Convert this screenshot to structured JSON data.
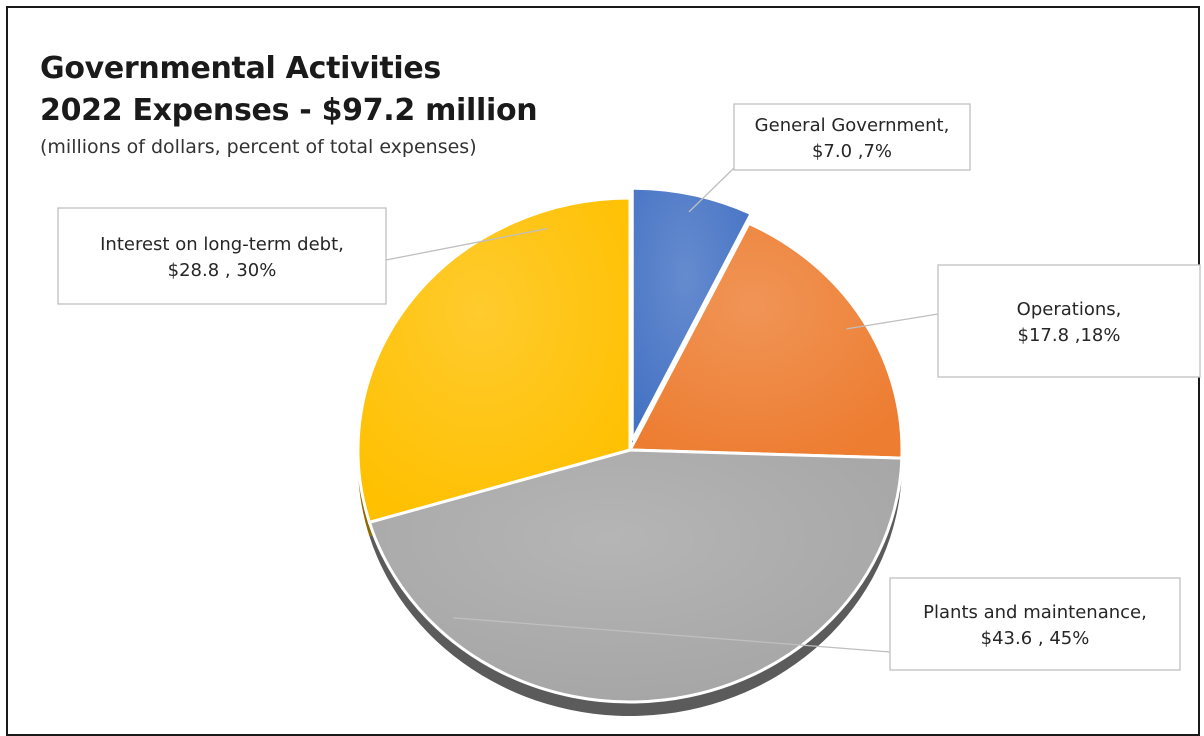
{
  "chart_data": {
    "type": "pie",
    "title": "Governmental Activities",
    "subtitle_line": "2022 Expenses - $97.2 million",
    "note": "(millions of dollars, percent of total expenses)",
    "slices": [
      {
        "label": "General Government",
        "value": 7.0,
        "percent": 7,
        "value_text": "$7.0 ,7%",
        "color": "#4472C4",
        "exploded": true
      },
      {
        "label": "Operations",
        "value": 17.8,
        "percent": 18,
        "value_text": "$17.8 ,18%",
        "color": "#ED7D31",
        "exploded": false
      },
      {
        "label": "Plants and maintenance",
        "value": 43.6,
        "percent": 45,
        "value_text": "$43.6 , 45%",
        "color": "#A5A5A5",
        "exploded": false
      },
      {
        "label": "Interest on long-term debt",
        "value": 28.8,
        "percent": 30,
        "value_text": "$28.8 , 30%",
        "color": "#FFC000",
        "exploded": false
      }
    ],
    "callout_label_suffix": ","
  }
}
